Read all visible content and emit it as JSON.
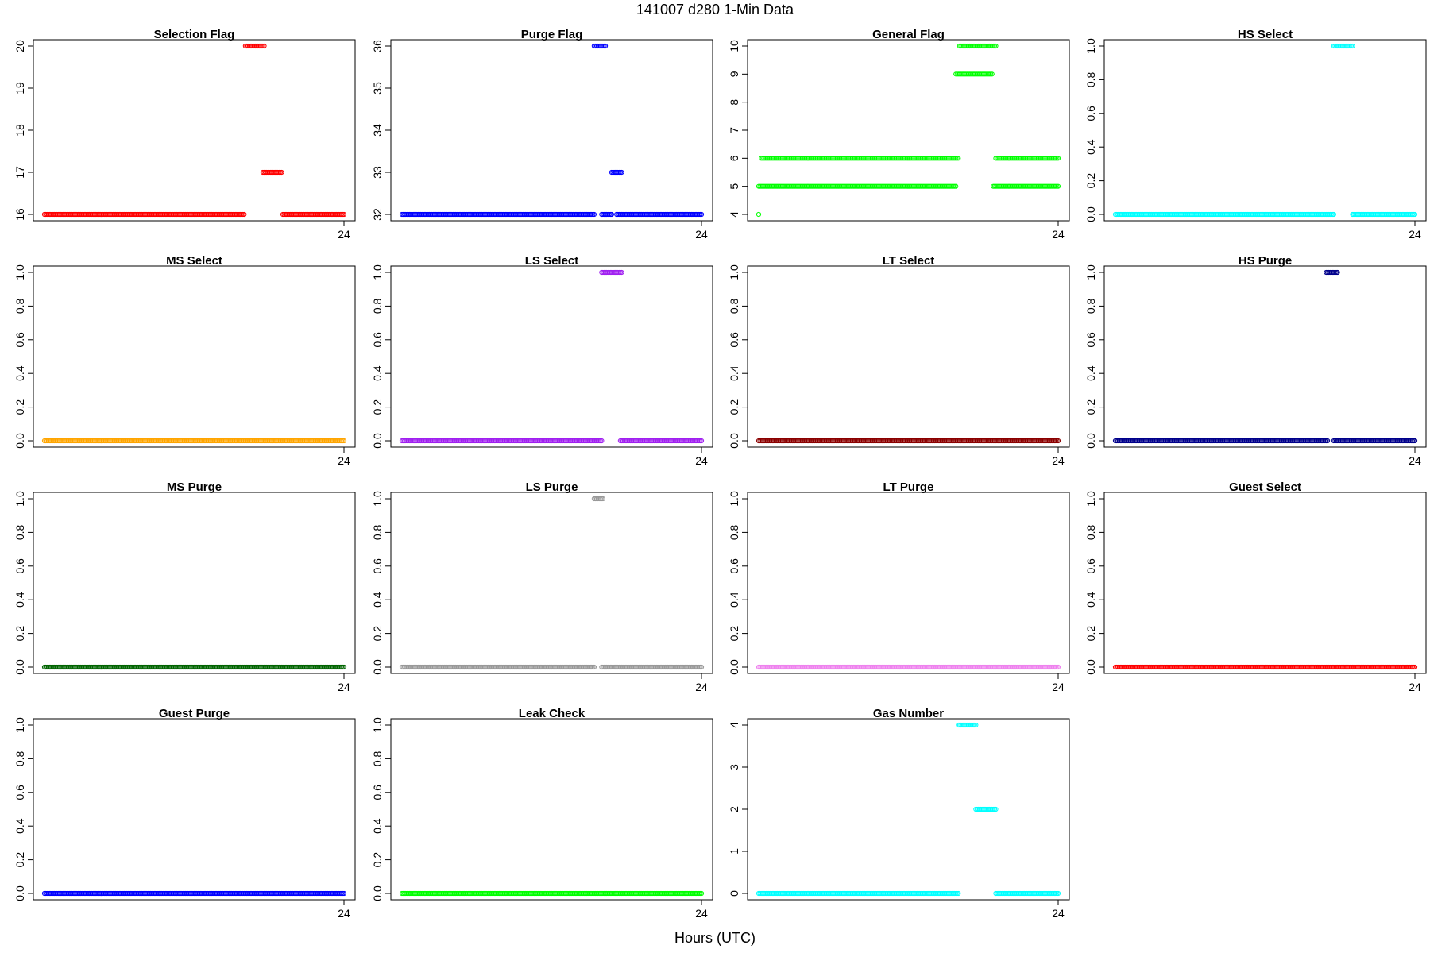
{
  "figure": {
    "title": "141007   d280   1-Min Data",
    "xlabel": "Hours (UTC)"
  },
  "chart_data": [
    {
      "type": "scatter",
      "title": "Selection Flag",
      "color": "#ff0000",
      "xlim": [
        0,
        24
      ],
      "ylim": [
        16,
        20
      ],
      "yticks": [
        16,
        17,
        18,
        19,
        20
      ],
      "ytick_labels": [
        "16",
        "17",
        "18",
        "19",
        "20"
      ],
      "xticks": [
        24
      ],
      "xtick_labels": [
        "24"
      ],
      "segments": [
        {
          "x": [
            0.0,
            16.0
          ],
          "y": 16
        },
        {
          "x": [
            16.1,
            17.6
          ],
          "y": 20
        },
        {
          "x": [
            17.5,
            19.0
          ],
          "y": 17
        },
        {
          "x": [
            19.1,
            24.0
          ],
          "y": 16
        }
      ]
    },
    {
      "type": "scatter",
      "title": "Purge Flag",
      "color": "#0000ff",
      "xlim": [
        0,
        24
      ],
      "ylim": [
        32,
        36
      ],
      "yticks": [
        32,
        33,
        34,
        35,
        36
      ],
      "ytick_labels": [
        "32",
        "33",
        "34",
        "35",
        "36"
      ],
      "xticks": [
        24
      ],
      "xtick_labels": [
        "24"
      ],
      "segments": [
        {
          "x": [
            0.0,
            15.4
          ],
          "y": 32
        },
        {
          "x": [
            15.4,
            16.3
          ],
          "y": 36
        },
        {
          "x": [
            16.0,
            16.8
          ],
          "y": 32
        },
        {
          "x": [
            16.8,
            17.6
          ],
          "y": 33
        },
        {
          "x": [
            17.2,
            24.0
          ],
          "y": 32
        }
      ]
    },
    {
      "type": "scatter",
      "title": "General Flag",
      "color": "#00ff00",
      "xlim": [
        0,
        24
      ],
      "ylim": [
        4,
        10
      ],
      "yticks": [
        4,
        5,
        6,
        7,
        8,
        9,
        10
      ],
      "ytick_labels": [
        "4",
        "5",
        "6",
        "7",
        "8",
        "9",
        "10"
      ],
      "xticks": [
        24
      ],
      "xtick_labels": [
        "24"
      ],
      "segments": [
        {
          "x": [
            0.0,
            0.0
          ],
          "y": 4
        },
        {
          "x": [
            0.2,
            16.0
          ],
          "y": 6
        },
        {
          "x": [
            0.0,
            15.8
          ],
          "y": 5
        },
        {
          "x": [
            16.1,
            19.0
          ],
          "y": 10
        },
        {
          "x": [
            15.8,
            18.7
          ],
          "y": 9
        },
        {
          "x": [
            19.0,
            24.0
          ],
          "y": 6
        },
        {
          "x": [
            18.8,
            24.0
          ],
          "y": 5
        }
      ]
    },
    {
      "type": "scatter",
      "title": "HS Select",
      "color": "#00ffff",
      "xlim": [
        0,
        24
      ],
      "ylim": [
        0,
        1
      ],
      "yticks": [
        0,
        0.2,
        0.4,
        0.6,
        0.8,
        1.0
      ],
      "ytick_labels": [
        "0.0",
        "0.2",
        "0.4",
        "0.6",
        "0.8",
        "1.0"
      ],
      "xticks": [
        24
      ],
      "xtick_labels": [
        "24"
      ],
      "segments": [
        {
          "x": [
            0.0,
            17.5
          ],
          "y": 0
        },
        {
          "x": [
            17.5,
            19.0
          ],
          "y": 1
        },
        {
          "x": [
            19.0,
            24.0
          ],
          "y": 0
        }
      ]
    },
    {
      "type": "scatter",
      "title": "MS Select",
      "color": "#ffa500",
      "xlim": [
        0,
        24
      ],
      "ylim": [
        0,
        1
      ],
      "yticks": [
        0,
        0.2,
        0.4,
        0.6,
        0.8,
        1.0
      ],
      "ytick_labels": [
        "0.0",
        "0.2",
        "0.4",
        "0.6",
        "0.8",
        "1.0"
      ],
      "xticks": [
        24
      ],
      "xtick_labels": [
        "24"
      ],
      "segments": [
        {
          "x": [
            0.0,
            24.0
          ],
          "y": 0
        }
      ]
    },
    {
      "type": "scatter",
      "title": "LS Select",
      "color": "#a020f0",
      "xlim": [
        0,
        24
      ],
      "ylim": [
        0,
        1
      ],
      "yticks": [
        0,
        0.2,
        0.4,
        0.6,
        0.8,
        1.0
      ],
      "ytick_labels": [
        "0.0",
        "0.2",
        "0.4",
        "0.6",
        "0.8",
        "1.0"
      ],
      "xticks": [
        24
      ],
      "xtick_labels": [
        "24"
      ],
      "segments": [
        {
          "x": [
            0.0,
            16.0
          ],
          "y": 0
        },
        {
          "x": [
            16.0,
            17.6
          ],
          "y": 1
        },
        {
          "x": [
            17.5,
            24.0
          ],
          "y": 0
        }
      ]
    },
    {
      "type": "scatter",
      "title": "LT Select",
      "color": "#8b0000",
      "xlim": [
        0,
        24
      ],
      "ylim": [
        0,
        1
      ],
      "yticks": [
        0,
        0.2,
        0.4,
        0.6,
        0.8,
        1.0
      ],
      "ytick_labels": [
        "0.0",
        "0.2",
        "0.4",
        "0.6",
        "0.8",
        "1.0"
      ],
      "xticks": [
        24
      ],
      "xtick_labels": [
        "24"
      ],
      "segments": [
        {
          "x": [
            0.0,
            24.0
          ],
          "y": 0
        }
      ]
    },
    {
      "type": "scatter",
      "title": "HS Purge",
      "color": "#00008b",
      "xlim": [
        0,
        24
      ],
      "ylim": [
        0,
        1
      ],
      "yticks": [
        0,
        0.2,
        0.4,
        0.6,
        0.8,
        1.0
      ],
      "ytick_labels": [
        "0.0",
        "0.2",
        "0.4",
        "0.6",
        "0.8",
        "1.0"
      ],
      "xticks": [
        24
      ],
      "xtick_labels": [
        "24"
      ],
      "segments": [
        {
          "x": [
            0.0,
            17.0
          ],
          "y": 0
        },
        {
          "x": [
            16.9,
            17.8
          ],
          "y": 1
        },
        {
          "x": [
            17.5,
            24.0
          ],
          "y": 0
        }
      ]
    },
    {
      "type": "scatter",
      "title": "MS Purge",
      "color": "#006400",
      "xlim": [
        0,
        24
      ],
      "ylim": [
        0,
        1
      ],
      "yticks": [
        0,
        0.2,
        0.4,
        0.6,
        0.8,
        1.0
      ],
      "ytick_labels": [
        "0.0",
        "0.2",
        "0.4",
        "0.6",
        "0.8",
        "1.0"
      ],
      "xticks": [
        24
      ],
      "xtick_labels": [
        "24"
      ],
      "segments": [
        {
          "x": [
            0.0,
            24.0
          ],
          "y": 0
        }
      ]
    },
    {
      "type": "scatter",
      "title": "LS Purge",
      "color": "#999999",
      "xlim": [
        0,
        24
      ],
      "ylim": [
        0,
        1
      ],
      "yticks": [
        0,
        0.2,
        0.4,
        0.6,
        0.8,
        1.0
      ],
      "ytick_labels": [
        "0.0",
        "0.2",
        "0.4",
        "0.6",
        "0.8",
        "1.0"
      ],
      "xticks": [
        24
      ],
      "xtick_labels": [
        "24"
      ],
      "segments": [
        {
          "x": [
            0.0,
            15.4
          ],
          "y": 0
        },
        {
          "x": [
            15.4,
            16.1
          ],
          "y": 1
        },
        {
          "x": [
            16.0,
            24.0
          ],
          "y": 0
        }
      ]
    },
    {
      "type": "scatter",
      "title": "LT Purge",
      "color": "#ee82ee",
      "xlim": [
        0,
        24
      ],
      "ylim": [
        0,
        1
      ],
      "yticks": [
        0,
        0.2,
        0.4,
        0.6,
        0.8,
        1.0
      ],
      "ytick_labels": [
        "0.0",
        "0.2",
        "0.4",
        "0.6",
        "0.8",
        "1.0"
      ],
      "xticks": [
        24
      ],
      "xtick_labels": [
        "24"
      ],
      "segments": [
        {
          "x": [
            0.0,
            24.0
          ],
          "y": 0
        }
      ]
    },
    {
      "type": "scatter",
      "title": "Guest Select",
      "color": "#ff0000",
      "xlim": [
        0,
        24
      ],
      "ylim": [
        0,
        1
      ],
      "yticks": [
        0,
        0.2,
        0.4,
        0.6,
        0.8,
        1.0
      ],
      "ytick_labels": [
        "0.0",
        "0.2",
        "0.4",
        "0.6",
        "0.8",
        "1.0"
      ],
      "xticks": [
        24
      ],
      "xtick_labels": [
        "24"
      ],
      "segments": [
        {
          "x": [
            0.0,
            24.0
          ],
          "y": 0
        }
      ]
    },
    {
      "type": "scatter",
      "title": "Guest Purge",
      "color": "#0000ff",
      "xlim": [
        0,
        24
      ],
      "ylim": [
        0,
        1
      ],
      "yticks": [
        0,
        0.2,
        0.4,
        0.6,
        0.8,
        1.0
      ],
      "ytick_labels": [
        "0.0",
        "0.2",
        "0.4",
        "0.6",
        "0.8",
        "1.0"
      ],
      "xticks": [
        24
      ],
      "xtick_labels": [
        "24"
      ],
      "segments": [
        {
          "x": [
            0.0,
            24.0
          ],
          "y": 0
        }
      ]
    },
    {
      "type": "scatter",
      "title": "Leak Check",
      "color": "#00ff00",
      "xlim": [
        0,
        24
      ],
      "ylim": [
        0,
        1
      ],
      "yticks": [
        0,
        0.2,
        0.4,
        0.6,
        0.8,
        1.0
      ],
      "ytick_labels": [
        "0.0",
        "0.2",
        "0.4",
        "0.6",
        "0.8",
        "1.0"
      ],
      "xticks": [
        24
      ],
      "xtick_labels": [
        "24"
      ],
      "segments": [
        {
          "x": [
            0.0,
            24.0
          ],
          "y": 0
        }
      ]
    },
    {
      "type": "scatter",
      "title": "Gas Number",
      "color": "#00ffff",
      "xlim": [
        0,
        24
      ],
      "ylim": [
        0,
        4
      ],
      "yticks": [
        0,
        1,
        2,
        3,
        4
      ],
      "ytick_labels": [
        "0",
        "1",
        "2",
        "3",
        "4"
      ],
      "xticks": [
        24
      ],
      "xtick_labels": [
        "24"
      ],
      "segments": [
        {
          "x": [
            0.0,
            16.0
          ],
          "y": 0
        },
        {
          "x": [
            16.0,
            17.4
          ],
          "y": 4
        },
        {
          "x": [
            17.4,
            19.0
          ],
          "y": 2
        },
        {
          "x": [
            19.0,
            24.0
          ],
          "y": 0
        }
      ]
    }
  ]
}
